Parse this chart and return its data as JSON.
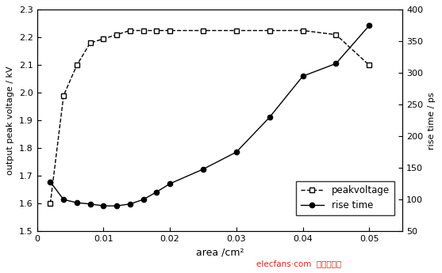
{
  "peak_voltage_x": [
    0.002,
    0.004,
    0.006,
    0.008,
    0.01,
    0.012,
    0.014,
    0.016,
    0.018,
    0.02,
    0.025,
    0.03,
    0.035,
    0.04,
    0.045,
    0.05
  ],
  "peak_voltage_y": [
    1.6,
    1.99,
    2.1,
    2.18,
    2.195,
    2.21,
    2.225,
    2.225,
    2.225,
    2.225,
    2.225,
    2.225,
    2.225,
    2.225,
    2.21,
    2.1
  ],
  "rise_time_x": [
    0.002,
    0.004,
    0.006,
    0.008,
    0.01,
    0.012,
    0.014,
    0.016,
    0.018,
    0.02,
    0.025,
    0.03,
    0.035,
    0.04,
    0.045,
    0.05
  ],
  "rise_time_y": [
    128,
    100,
    95,
    93,
    90,
    90,
    93,
    100,
    112,
    125,
    148,
    175,
    230,
    295,
    315,
    375
  ],
  "xlabel": "area /cm²",
  "ylabel_left": "output peak voltage / kV",
  "ylabel_right": "rise time / ps",
  "xlim": [
    0,
    0.055
  ],
  "ylim_left": [
    1.5,
    2.3
  ],
  "ylim_right": [
    50,
    400
  ],
  "xticks": [
    0,
    0.01,
    0.02,
    0.03,
    0.04,
    0.05
  ],
  "xtick_labels": [
    "0",
    "0.01",
    "0.02",
    "0.03",
    "0.04",
    "0.05"
  ],
  "yticks_left": [
    1.5,
    1.6,
    1.7,
    1.8,
    1.9,
    2.0,
    2.1,
    2.2,
    2.3
  ],
  "yticks_right": [
    50,
    100,
    150,
    200,
    250,
    300,
    350,
    400
  ],
  "legend_peak": "peakvoltage",
  "legend_rise": "rise time",
  "line_color": "#000000",
  "bg_color": "#ffffff",
  "watermark_text": "elecfans·com  电子发烧友",
  "watermark_color": "#dd2211"
}
